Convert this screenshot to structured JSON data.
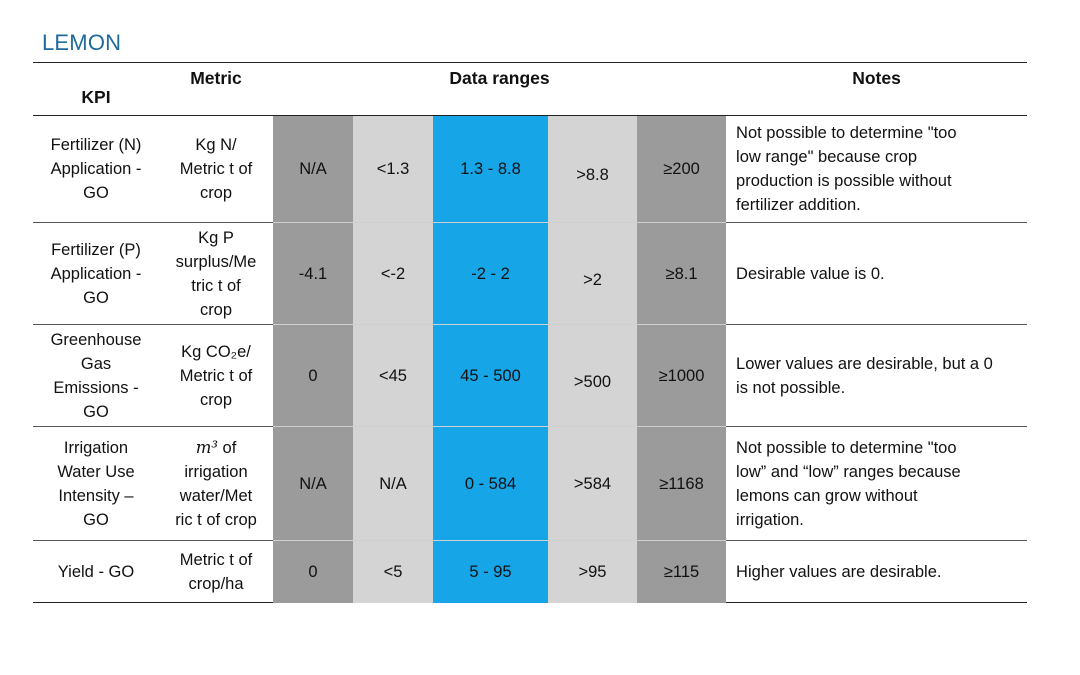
{
  "title": "LEMON",
  "headers": {
    "kpi": "KPI",
    "metric": "Metric",
    "ranges": "Data ranges",
    "notes": "Notes"
  },
  "rows": [
    {
      "kpi": [
        "Fertilizer (N)",
        "Application -",
        "GO"
      ],
      "metric": [
        "Kg N/",
        "Metric t of",
        "crop"
      ],
      "ranges": [
        "N/A",
        "<1.3",
        "1.3 - 8.8",
        ">8.8",
        "≥200"
      ],
      "notes": [
        "Not possible to determine \"too",
        "low range\" because crop",
        "production is possible without",
        "fertilizer addition."
      ]
    },
    {
      "kpi": [
        "Fertilizer (P)",
        "Application -",
        "GO"
      ],
      "metric": [
        "Kg P",
        "surplus/Me",
        "tric t of",
        "crop"
      ],
      "ranges": [
        "-4.1",
        "<-2",
        "-2 - 2",
        ">2",
        "≥8.1"
      ],
      "notes": [
        "Desirable value is 0."
      ]
    },
    {
      "kpi": [
        "Greenhouse",
        "Gas",
        "Emissions -",
        "GO"
      ],
      "metric": [
        "Kg CO₂e/",
        "Metric t of",
        "crop"
      ],
      "ranges": [
        "0",
        "<45",
        "45 - 500",
        ">500",
        "≥1000"
      ],
      "notes": [
        "Lower values are desirable, but a 0",
        "is not possible."
      ]
    },
    {
      "kpi": [
        "Irrigation",
        "Water Use",
        "Intensity –",
        "GO"
      ],
      "metric": [
        "m³ of",
        "irrigation",
        "water/Met",
        "ric t of crop"
      ],
      "ranges": [
        "N/A",
        "N/A",
        "0 - 584",
        ">584",
        "≥1168"
      ],
      "notes": [
        "Not possible to determine \"too",
        "low” and “low” ranges because",
        "lemons can grow without",
        "irrigation."
      ]
    },
    {
      "kpi": [
        "Yield - GO"
      ],
      "metric": [
        "Metric t of",
        "crop/ha"
      ],
      "ranges": [
        "0",
        "<5",
        "5 - 95",
        ">95",
        "≥115"
      ],
      "notes": [
        "Higher values are desirable."
      ]
    }
  ],
  "colors": {
    "title": "#1f6b9c",
    "range_dark": "#9b9b9b",
    "range_light": "#d4d4d4",
    "range_desirable": "#16a5e6"
  }
}
